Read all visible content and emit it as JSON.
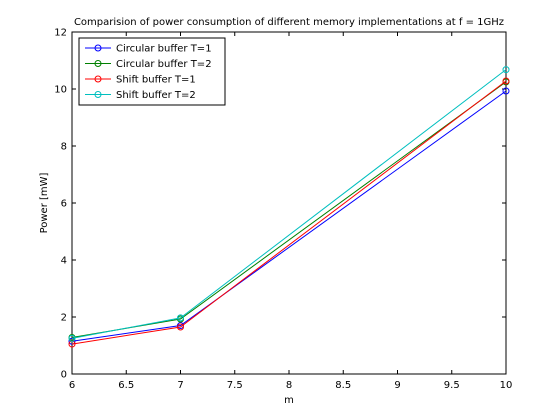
{
  "chart_data": {
    "type": "line",
    "title": "Comparision of power consumption of different memory implementations at f = 1GHz",
    "xlabel": "m",
    "ylabel": "Power [mW]",
    "xlim": [
      6,
      10
    ],
    "ylim": [
      0,
      12
    ],
    "xticks": [
      "6",
      "6.5",
      "7",
      "7.5",
      "8",
      "8.5",
      "9",
      "9.5",
      "10"
    ],
    "yticks": [
      "0",
      "2",
      "4",
      "6",
      "8",
      "10",
      "12"
    ],
    "x": [
      6,
      7,
      10
    ],
    "grid": false,
    "legend": "top-left",
    "series": [
      {
        "name": "Circular buffer T=1",
        "values": [
          1.15,
          1.7,
          9.93
        ],
        "color": "#0000ff",
        "marker": "circle"
      },
      {
        "name": "Circular buffer T=2",
        "values": [
          1.28,
          1.93,
          10.25
        ],
        "color": "#008000",
        "marker": "circle"
      },
      {
        "name": "Shift buffer T=1",
        "values": [
          1.05,
          1.65,
          10.28
        ],
        "color": "#ff0000",
        "marker": "circle"
      },
      {
        "name": "Shift buffer T=2",
        "values": [
          1.25,
          1.97,
          10.68
        ],
        "color": "#00bfbf",
        "marker": "circle"
      }
    ]
  }
}
